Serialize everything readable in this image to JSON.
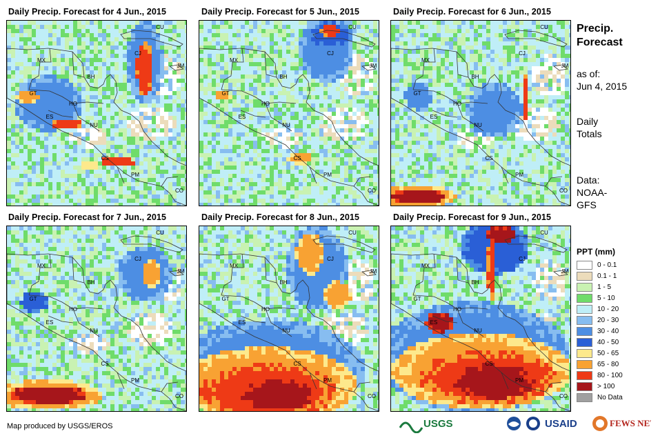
{
  "panels": [
    {
      "title": "Daily Precip. Forecast for 4 Jun., 2015"
    },
    {
      "title": "Daily Precip. Forecast for 5 Jun., 2015"
    },
    {
      "title": "Daily Precip. Forecast for 6 Jun., 2015"
    },
    {
      "title": "Daily Precip. Forecast for 7 Jun., 2015"
    },
    {
      "title": "Daily Precip. Forecast for 8 Jun., 2015"
    },
    {
      "title": "Daily Precip. Forecast for 9 Jun., 2015"
    }
  ],
  "country_labels": [
    "MX",
    "BH",
    "GT",
    "HO",
    "ES",
    "NU",
    "CS",
    "PM",
    "CU",
    "CJ",
    "JM",
    "CO"
  ],
  "sidebar": {
    "title_line1": "Precip.",
    "title_line2": "Forecast",
    "asof_line1": "as of:",
    "asof_line2": "Jun 4, 2015",
    "daily_line1": "Daily",
    "daily_line2": "Totals",
    "data_line1": "Data:",
    "data_line2": "NOAA-",
    "data_line3": "GFS"
  },
  "legend": {
    "title": "PPT (mm)",
    "items": [
      {
        "label": "0 - 0.1",
        "color": "#ffffff"
      },
      {
        "label": "0.1 - 1",
        "color": "#ecdcbb"
      },
      {
        "label": "1 - 5",
        "color": "#c9f2b2"
      },
      {
        "label": "5 - 10",
        "color": "#6fdc6a"
      },
      {
        "label": "10 - 20",
        "color": "#bfeef7"
      },
      {
        "label": "20 - 30",
        "color": "#87bdf0"
      },
      {
        "label": "30 - 40",
        "color": "#4d8ee3"
      },
      {
        "label": "40 - 50",
        "color": "#2a5fd6"
      },
      {
        "label": "50 - 65",
        "color": "#fde98c"
      },
      {
        "label": "65 - 80",
        "color": "#f8a233"
      },
      {
        "label": "80 - 100",
        "color": "#ee3a16"
      },
      {
        "label": "> 100",
        "color": "#a6161b"
      },
      {
        "label": "No Data",
        "color": "#a0a0a0"
      }
    ]
  },
  "footer": {
    "credit": "Map produced by USGS/EROS"
  },
  "logos": {
    "usgs": "USGS",
    "usaid": "USAID",
    "fewsnet": "FEWS NET"
  }
}
